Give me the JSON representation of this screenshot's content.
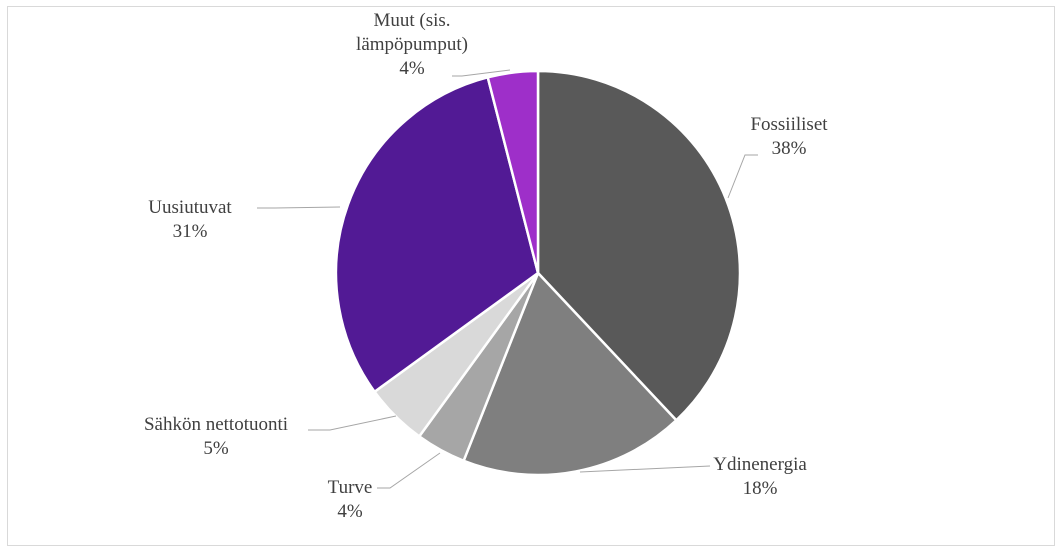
{
  "chart_data": {
    "type": "pie",
    "start_angle_deg": 0,
    "direction": "clockwise",
    "slices": [
      {
        "label_lines": [
          "Fossiiliset"
        ],
        "percent_label": "38%",
        "value": 38,
        "color": "#595959"
      },
      {
        "label_lines": [
          "Ydinenergia"
        ],
        "percent_label": "18%",
        "value": 18,
        "color": "#7f7f7f"
      },
      {
        "label_lines": [
          "Turve"
        ],
        "percent_label": "4%",
        "value": 4,
        "color": "#a6a6a6"
      },
      {
        "label_lines": [
          "Sähkön nettotuonti"
        ],
        "percent_label": "5%",
        "value": 5,
        "color": "#d9d9d9"
      },
      {
        "label_lines": [
          "Uusiutuvat"
        ],
        "percent_label": "31%",
        "value": 31,
        "color": "#521a95"
      },
      {
        "label_lines": [
          "Muut (sis.",
          "lämpöpumput)"
        ],
        "percent_label": "4%",
        "value": 4,
        "color": "#9e2fc9"
      }
    ]
  }
}
